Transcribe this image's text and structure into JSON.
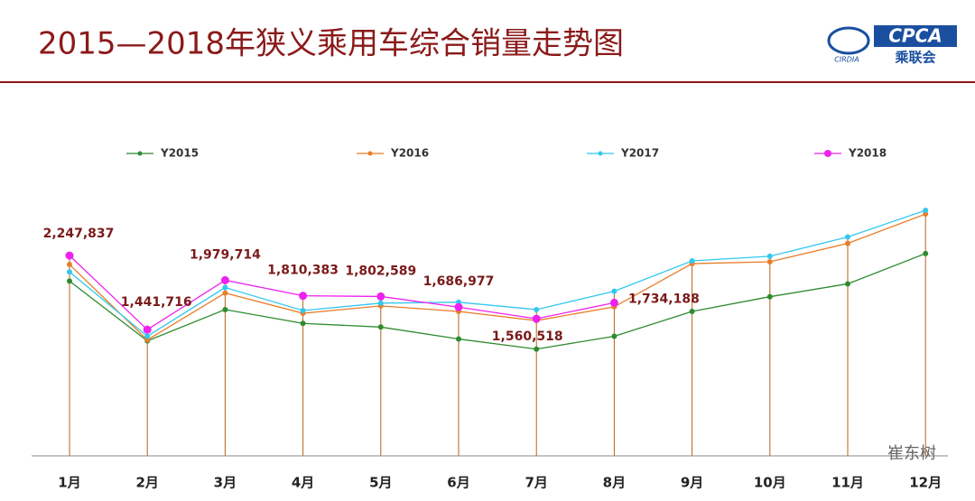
{
  "chart_data": {
    "type": "line",
    "title": "2015—2018年狭义乘用车综合销量走势图",
    "categories": [
      "1月",
      "2月",
      "3月",
      "4月",
      "5月",
      "6月",
      "7月",
      "8月",
      "9月",
      "10月",
      "11月",
      "12月"
    ],
    "series": [
      {
        "name": "Y2015",
        "color": "#2e8b2e",
        "values": [
          1970000,
          1320000,
          1660000,
          1510000,
          1470000,
          1340000,
          1230000,
          1370000,
          1640000,
          1800000,
          1940000,
          2270000
        ]
      },
      {
        "name": "Y2016",
        "color": "#e87d2a",
        "values": [
          2150000,
          1330000,
          1840000,
          1620000,
          1700000,
          1640000,
          1540000,
          1690000,
          2160000,
          2180000,
          2380000,
          2700000
        ]
      },
      {
        "name": "Y2017",
        "color": "#33c8ee",
        "values": [
          2070000,
          1370000,
          1900000,
          1650000,
          1730000,
          1740000,
          1660000,
          1860000,
          2190000,
          2240000,
          2450000,
          2740000
        ]
      },
      {
        "name": "Y2018",
        "color": "#ee22ee",
        "values": [
          2247837,
          1441716,
          1979714,
          1810383,
          1802589,
          1686977,
          1560518,
          1734188,
          null,
          null,
          null,
          null
        ],
        "value_labels": [
          "2,247,837",
          "1,441,716",
          "1,979,714",
          "1,810,383",
          "1,802,589",
          "1,686,977",
          "1,560,518",
          "1,734,188",
          null,
          null,
          null,
          null
        ]
      }
    ],
    "ylim": [
      0,
      3000000
    ],
    "legend": "top"
  },
  "logo": {
    "name": "CPCA",
    "sub": "乘联会",
    "mark": "CIRDIA"
  },
  "watermark": "崔东树"
}
